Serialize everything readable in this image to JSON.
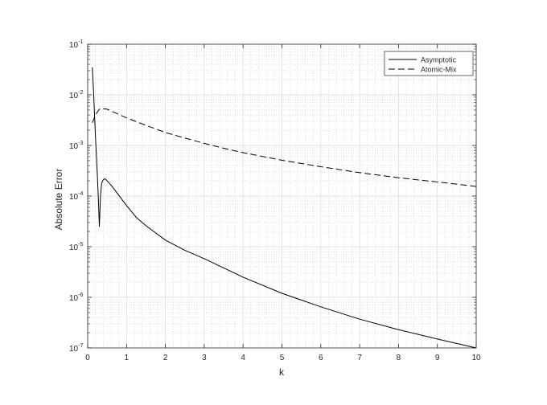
{
  "chart_data": {
    "type": "line",
    "xlabel": "k",
    "ylabel": "Absolute Error",
    "xlim": [
      0,
      10
    ],
    "ylim": [
      1e-07,
      0.1
    ],
    "yscale": "log",
    "grid": true,
    "minor_grid": true,
    "legend_position": "top-right",
    "x_ticks": [
      0,
      1,
      2,
      3,
      4,
      5,
      6,
      7,
      8,
      9,
      10
    ],
    "x_tick_labels": [
      "0",
      "1",
      "2",
      "3",
      "4",
      "5",
      "6",
      "7",
      "8",
      "9",
      "10"
    ],
    "y_ticks": [
      1e-07,
      1e-06,
      1e-05,
      0.0001,
      0.001,
      0.01,
      0.1
    ],
    "y_tick_labels": [
      {
        "base": "10",
        "exp": "-7"
      },
      {
        "base": "10",
        "exp": "-6"
      },
      {
        "base": "10",
        "exp": "-5"
      },
      {
        "base": "10",
        "exp": "-4"
      },
      {
        "base": "10",
        "exp": "-3"
      },
      {
        "base": "10",
        "exp": "-2"
      },
      {
        "base": "10",
        "exp": "-1"
      }
    ],
    "series": [
      {
        "name": "Asymptotic",
        "style": "solid",
        "color": "#000000",
        "x": [
          0.12,
          0.15,
          0.2,
          0.25,
          0.28,
          0.3,
          0.33,
          0.36,
          0.4,
          0.45,
          0.5,
          0.6,
          0.7,
          0.8,
          1.0,
          1.25,
          1.5,
          2.0,
          2.5,
          3.0,
          3.5,
          4.0,
          5.0,
          6.0,
          7.0,
          8.0,
          9.0,
          10.0
        ],
        "y": [
          0.035,
          0.012,
          0.0015,
          0.00025,
          7e-05,
          2.5e-05,
          0.0001,
          0.00018,
          0.00021,
          0.00022,
          0.0002,
          0.000165,
          0.000132,
          0.000104,
          6.5e-05,
          3.8e-05,
          2.6e-05,
          1.35e-05,
          8.5e-06,
          5.8e-06,
          3.8e-06,
          2.5e-06,
          1.2e-06,
          6.5e-07,
          3.7e-07,
          2.3e-07,
          1.5e-07,
          1e-07
        ]
      },
      {
        "name": "Atomic-Mix",
        "style": "dashed",
        "color": "#000000",
        "x": [
          0.12,
          0.2,
          0.3,
          0.4,
          0.5,
          0.6,
          0.8,
          1.0,
          1.5,
          2.0,
          2.5,
          3.0,
          3.5,
          4.0,
          5.0,
          6.0,
          7.0,
          8.0,
          9.0,
          10.0
        ],
        "y": [
          0.0028,
          0.004,
          0.0052,
          0.0053,
          0.0052,
          0.0048,
          0.0041,
          0.0035,
          0.0025,
          0.0018,
          0.0014,
          0.0011,
          0.00088,
          0.00072,
          0.00051,
          0.00038,
          0.00029,
          0.00023,
          0.00019,
          0.000155
        ]
      }
    ]
  }
}
